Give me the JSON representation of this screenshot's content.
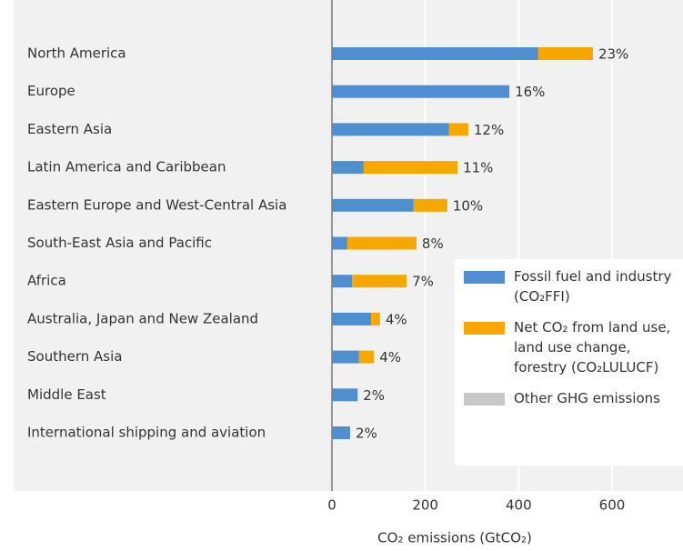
{
  "chart_data": {
    "type": "bar",
    "orientation": "horizontal",
    "stacked": true,
    "categories": [
      "North America",
      "Europe",
      "Eastern Asia",
      "Latin America and Caribbean",
      "Eastern Europe and West-Central Asia",
      "South-East Asia and Pacific",
      "Africa",
      "Australia, Japan and New Zealand",
      "Southern Asia",
      "Middle East",
      "International shipping and aviation"
    ],
    "series": [
      {
        "name": "Fossil fuel and industry (CO₂FFI)",
        "color": "#4f8fd0",
        "values": [
          442,
          380,
          251,
          68,
          175,
          33,
          43,
          84,
          58,
          55,
          39
        ]
      },
      {
        "name": "Net CO₂ from land use, land use change, forestry (CO₂LULUCF)",
        "color": "#f7a800",
        "values": [
          117,
          0,
          41,
          201,
          72,
          148,
          117,
          19,
          32,
          0,
          0
        ]
      },
      {
        "name": "Other GHG emissions",
        "color": "#c8c8c8",
        "values": [
          null,
          null,
          null,
          null,
          null,
          null,
          null,
          null,
          null,
          null,
          null
        ]
      }
    ],
    "share_labels": [
      "23%",
      "16%",
      "12%",
      "11%",
      "10%",
      "8%",
      "7%",
      "4%",
      "4%",
      "2%",
      "2%"
    ],
    "xlim": [
      0,
      750
    ],
    "xticks": [
      0,
      200,
      400,
      600
    ],
    "grid": true,
    "xlabel": "CO₂ emissions (GtCO₂)"
  }
}
